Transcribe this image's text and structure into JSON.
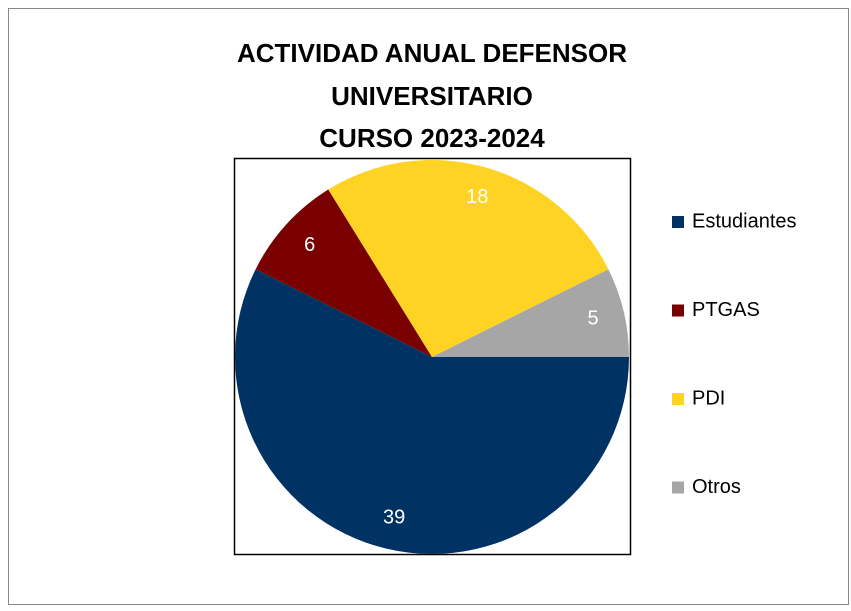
{
  "chart_data": {
    "type": "pie",
    "title": [
      "ACTIVIDAD ANUAL DEFENSOR",
      "UNIVERSITARIO",
      "CURSO 2023-2024"
    ],
    "categories": [
      "Estudiantes",
      "PTGAS",
      "PDI",
      "Otros"
    ],
    "values": [
      39,
      6,
      18,
      5
    ],
    "colors": [
      "#003263",
      "#7a0000",
      "#ffd324",
      "#a6a6a6"
    ],
    "legend": "right"
  }
}
